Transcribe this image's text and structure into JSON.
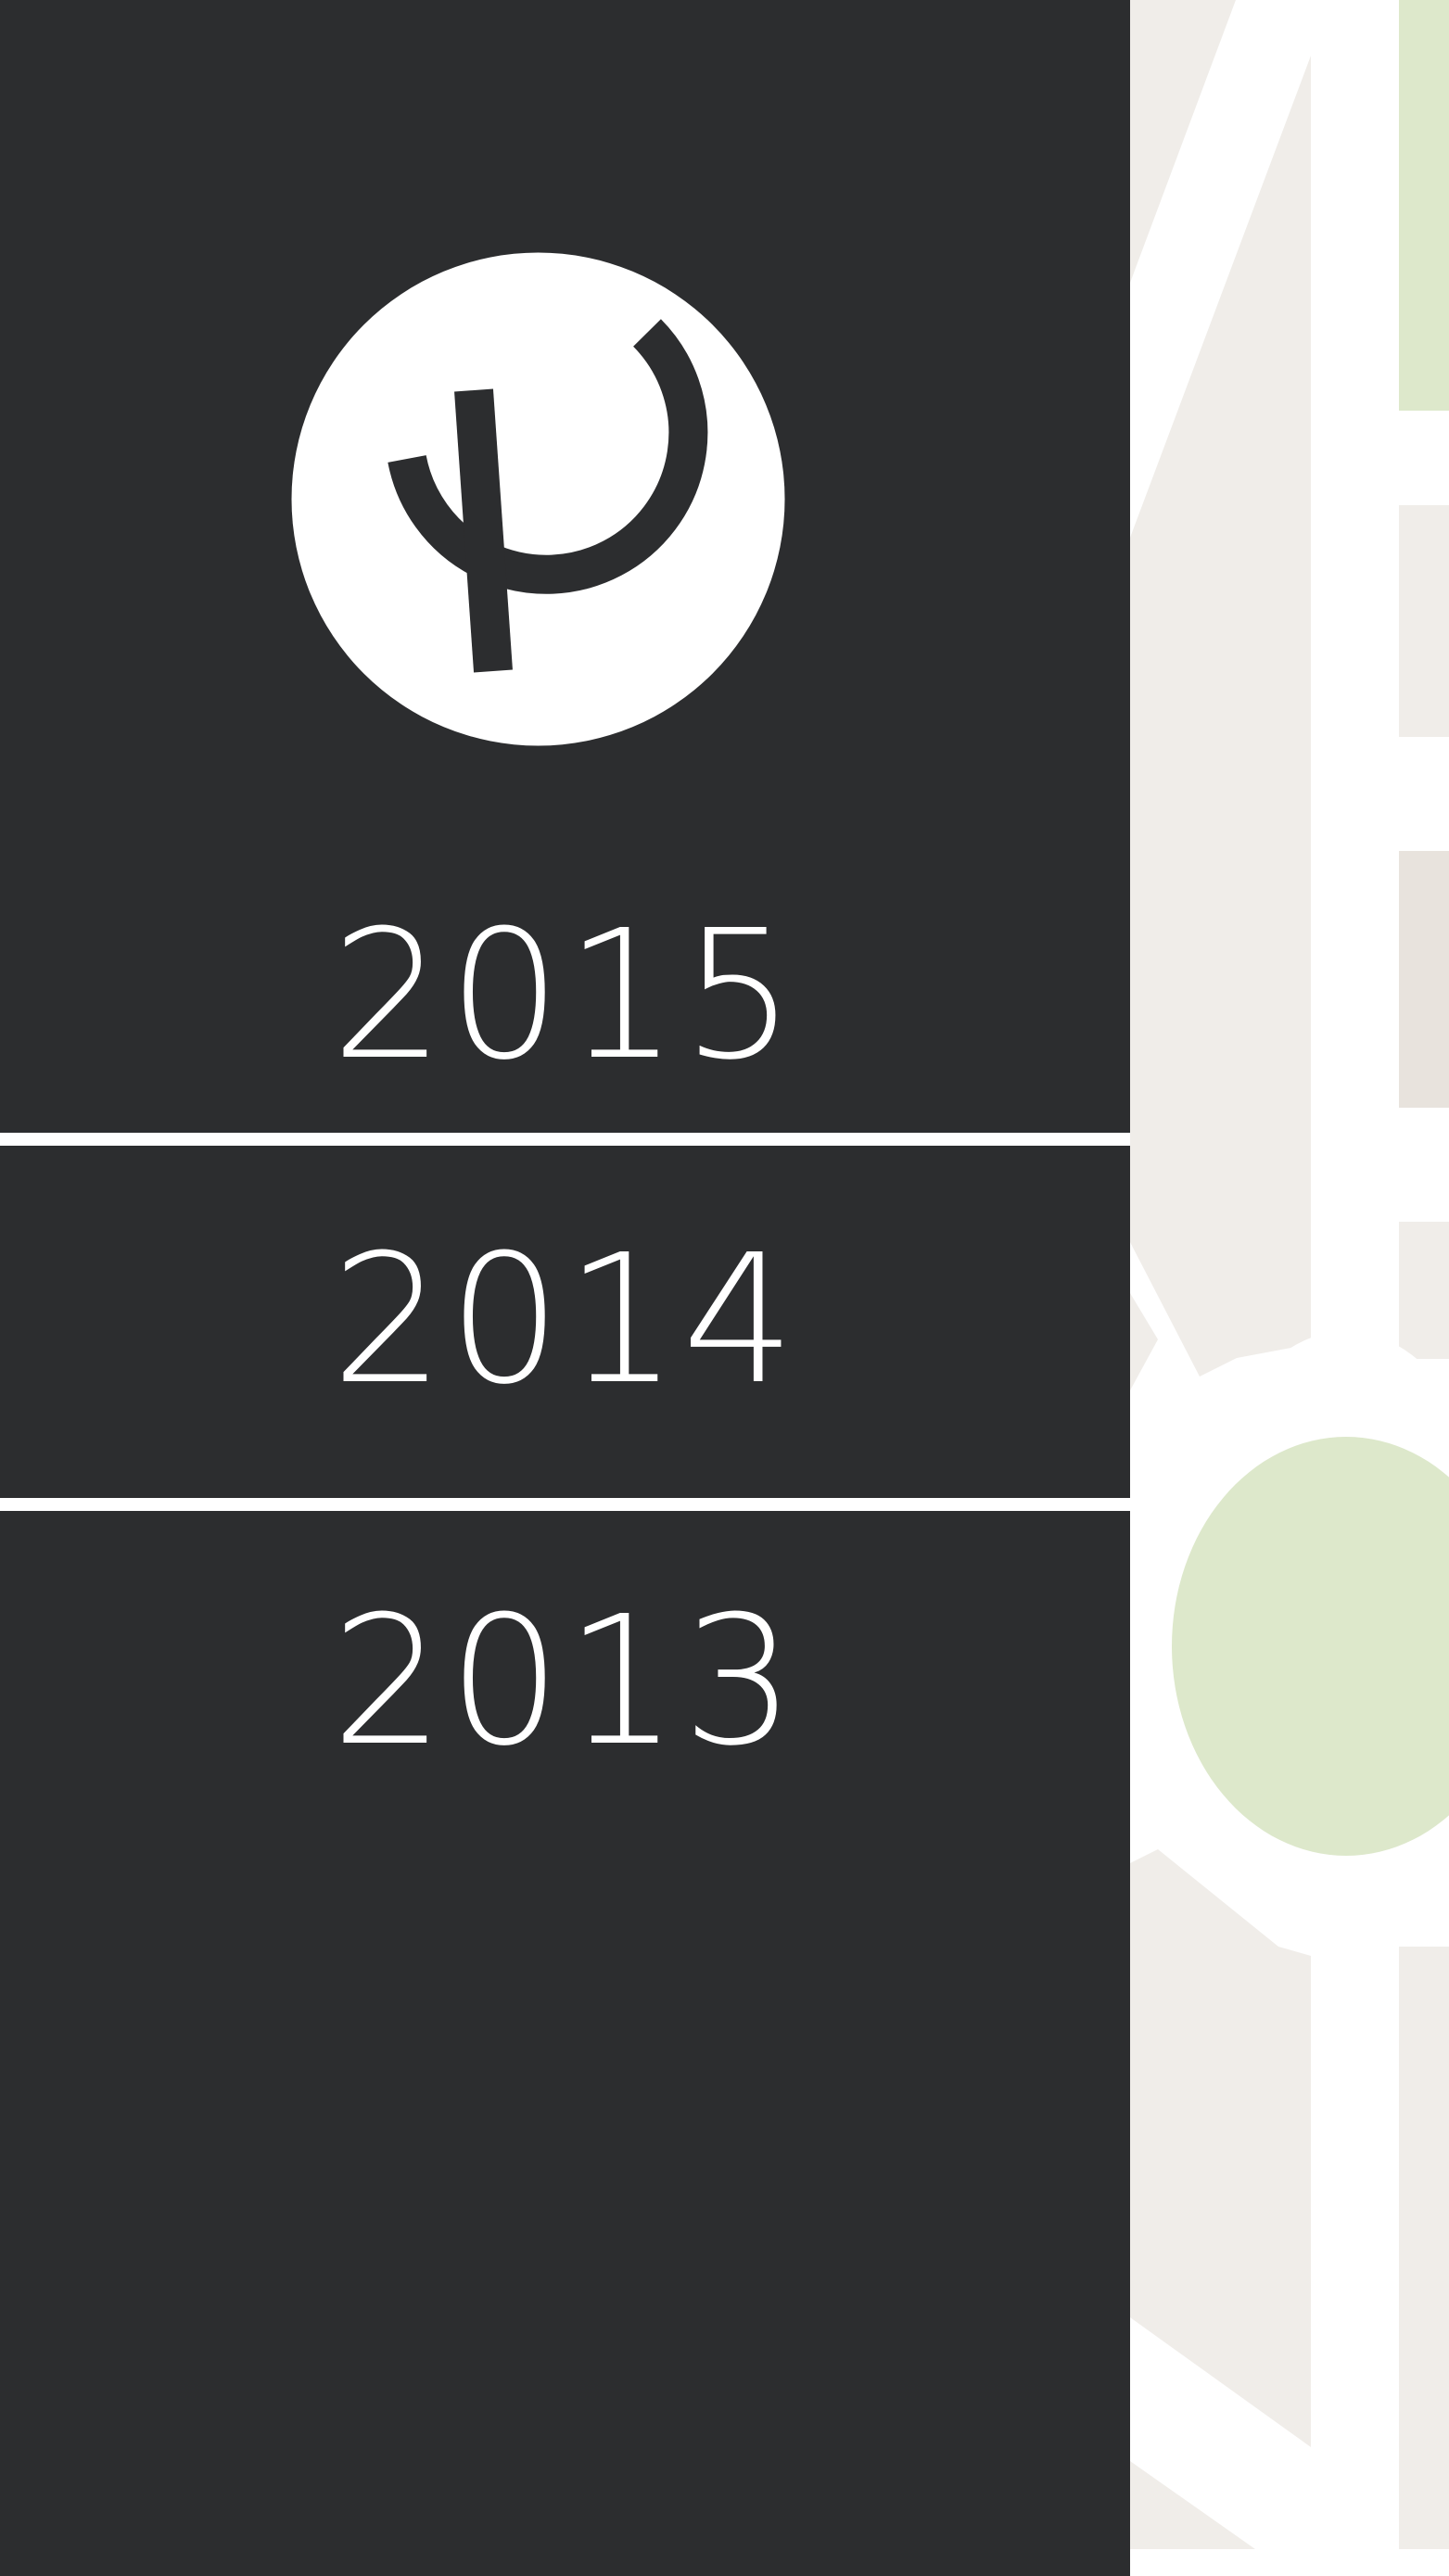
{
  "logo": {
    "name": "phi-logo",
    "background_color": "#ffffff",
    "mark_color": "#2c2d2f"
  },
  "years": [
    {
      "label": "2015"
    },
    {
      "label": "2014"
    },
    {
      "label": "2013"
    }
  ],
  "colors": {
    "sidebar_background": "#2c2d2f",
    "divider": "#ffffff",
    "year_text": "#ffffff",
    "map_land": "#f0ede9",
    "map_block_dark": "#e8e3dd",
    "map_park": "#dde8cb",
    "map_road": "#ffffff"
  },
  "map": {
    "features": [
      "park-strip",
      "park-roundabout",
      "roads",
      "city-blocks"
    ]
  }
}
